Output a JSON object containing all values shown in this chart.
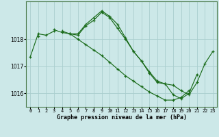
{
  "hours": [
    0,
    1,
    2,
    3,
    4,
    5,
    6,
    7,
    8,
    9,
    10,
    11,
    12,
    13,
    14,
    15,
    16,
    17,
    18,
    19,
    20,
    21,
    22,
    23
  ],
  "line1": [
    1017.35,
    1018.2,
    1018.15,
    1018.3,
    null,
    null,
    null,
    null,
    null,
    null,
    null,
    null,
    null,
    null,
    null,
    null,
    null,
    null,
    null,
    null,
    null,
    null,
    null,
    null
  ],
  "line2": [
    null,
    1018.1,
    null,
    1018.35,
    1018.25,
    1018.2,
    1018.2,
    1018.55,
    1018.8,
    1019.05,
    1018.85,
    1018.55,
    1018.05,
    1017.55,
    1017.2,
    1016.75,
    1016.4,
    1016.35,
    1015.95,
    1015.8,
    1016.0,
    1016.7,
    null,
    null
  ],
  "line3": [
    null,
    null,
    null,
    null,
    1018.3,
    1018.2,
    1018.15,
    1018.5,
    1018.7,
    1019.0,
    1018.8,
    1018.4,
    1018.0,
    1017.55,
    1017.2,
    1016.8,
    1016.45,
    1016.35,
    1016.3,
    1016.1,
    1015.95,
    1016.4,
    1017.1,
    1017.55
  ],
  "line4": [
    null,
    null,
    null,
    null,
    null,
    1018.2,
    1018.0,
    1017.8,
    1017.6,
    1017.4,
    1017.15,
    1016.9,
    1016.65,
    1016.45,
    1016.25,
    1016.05,
    1015.9,
    1015.75,
    1015.75,
    1015.85,
    1016.1,
    null,
    null,
    null
  ],
  "bg_color": "#cce8e8",
  "grid_color": "#aacece",
  "line_color": "#1a6b1a",
  "marker": "+",
  "xlabel": "Graphe pression niveau de la mer (hPa)",
  "ylim": [
    1015.5,
    1019.4
  ],
  "yticks": [
    1016,
    1017,
    1018
  ],
  "xtick_labels": [
    "0",
    "1",
    "2",
    "3",
    "4",
    "5",
    "6",
    "7",
    "8",
    "9",
    "10",
    "11",
    "12",
    "13",
    "14",
    "15",
    "16",
    "17",
    "18",
    "19",
    "20",
    "21",
    "22",
    "23"
  ]
}
